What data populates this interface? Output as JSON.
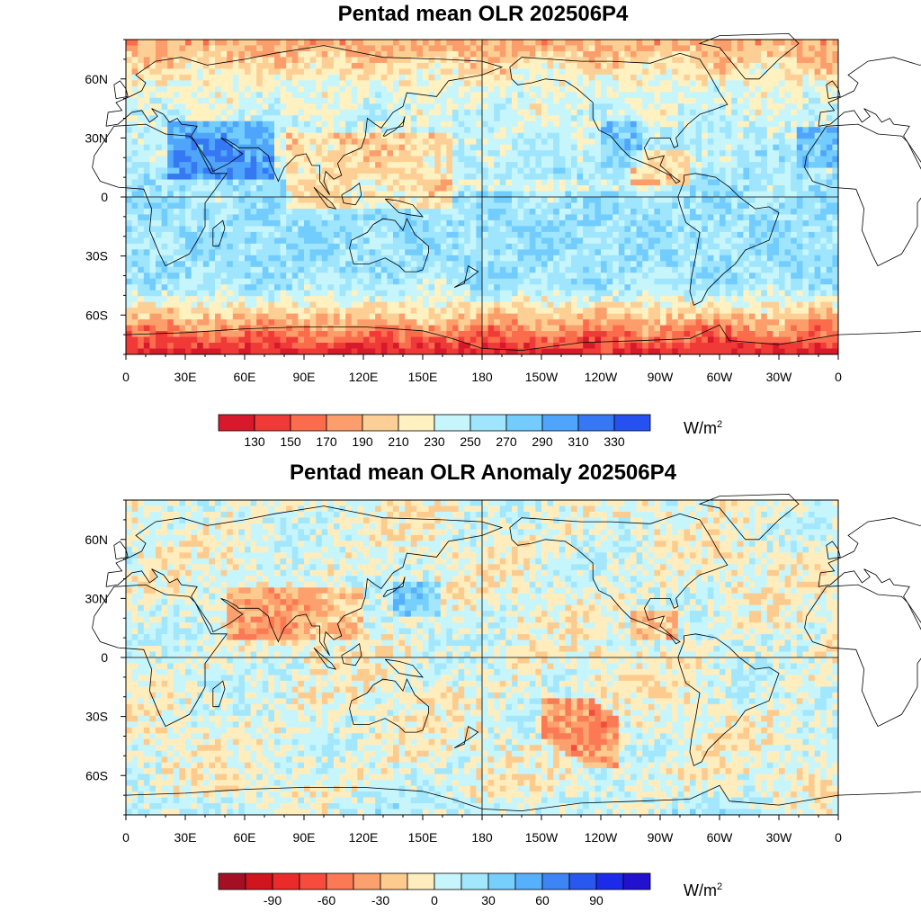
{
  "panels": [
    {
      "title": "Pentad mean OLR 202506P4",
      "lat_labels": [
        "60N",
        "30N",
        "0",
        "30S",
        "60S"
      ],
      "lat_values": [
        60,
        30,
        0,
        -30,
        -60
      ],
      "lon_labels": [
        "0",
        "30E",
        "60E",
        "90E",
        "120E",
        "150E",
        "180",
        "150W",
        "120W",
        "90W",
        "60W",
        "30W",
        "0"
      ],
      "colorbar": {
        "labels": [
          "130",
          "150",
          "170",
          "190",
          "210",
          "230",
          "250",
          "270",
          "290",
          "310",
          "330"
        ],
        "colors": [
          "#d7192b",
          "#f03a37",
          "#fb6c4d",
          "#fc9e6b",
          "#fecf94",
          "#fff1c0",
          "#c6f5fc",
          "#9fe5fd",
          "#72ccfd",
          "#4ea5fb",
          "#3678f4",
          "#2451f0"
        ],
        "unit_base": "W/m",
        "unit_exp": "2"
      }
    },
    {
      "title": "Pentad mean OLR Anomaly 202506P4",
      "lat_labels": [
        "60N",
        "30N",
        "0",
        "30S",
        "60S"
      ],
      "lat_values": [
        60,
        30,
        0,
        -30,
        -60
      ],
      "lon_labels": [
        "0",
        "30E",
        "60E",
        "90E",
        "120E",
        "150E",
        "180",
        "150W",
        "120W",
        "90W",
        "60W",
        "30W",
        "0"
      ],
      "colorbar": {
        "labels": [
          "-90",
          "-60",
          "-30",
          "0",
          "30",
          "60",
          "90"
        ],
        "label_slots": [
          2,
          4,
          6,
          8,
          10,
          12,
          14
        ],
        "colors": [
          "#a50f23",
          "#d0151f",
          "#eb2a2a",
          "#f64b3d",
          "#fb7a55",
          "#fca06e",
          "#fecb8e",
          "#ffedbd",
          "#c6f5fc",
          "#a2e7fd",
          "#77cffd",
          "#56b0fb",
          "#3d85f5",
          "#2958ee",
          "#1c2bea",
          "#2211cf"
        ],
        "unit_base": "W/m",
        "unit_exp": "2"
      }
    }
  ]
}
